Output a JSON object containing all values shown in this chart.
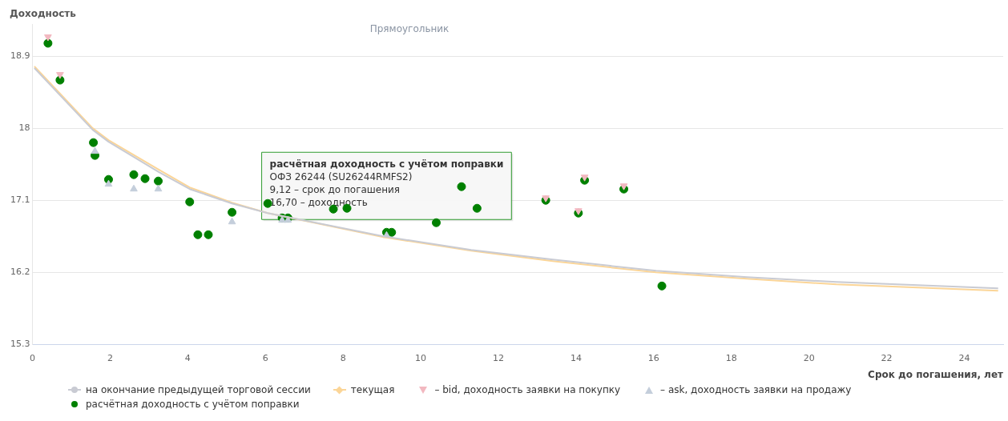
{
  "chart_data": {
    "type": "scatter",
    "xlabel": "Срок до погашения, лет",
    "ylabel": "Доходность",
    "xlim": [
      0,
      25
    ],
    "xticks": [
      0,
      2,
      4,
      6,
      8,
      10,
      12,
      14,
      16,
      18,
      20,
      22,
      24
    ],
    "ylim": [
      15.3,
      19.3
    ],
    "yticks": [
      15.3,
      16.2,
      17.1,
      18,
      18.9
    ],
    "grid": "y",
    "legend": "bottom",
    "series": [
      {
        "name": "на окончание предыдущей торговой сессии",
        "type": "line",
        "color": "#c9cbd3",
        "x": [
          0.05,
          1.55,
          1.96,
          3.26,
          4.05,
          5.14,
          6.06,
          9.04,
          11.3,
          13.4,
          16.06,
          18.4,
          20.7,
          22.8,
          24.87
        ],
        "values": [
          18.75,
          17.98,
          17.83,
          17.45,
          17.24,
          17.06,
          16.94,
          16.65,
          16.48,
          16.36,
          16.22,
          16.14,
          16.08,
          16.04,
          16.0
        ]
      },
      {
        "name": "текущая",
        "type": "line",
        "color": "#fbd597",
        "x": [
          0.05,
          1.55,
          1.96,
          3.26,
          4.05,
          5.14,
          6.06,
          9.04,
          11.3,
          13.4,
          16.06,
          18.4,
          20.7,
          22.8,
          24.87
        ],
        "values": [
          18.77,
          18.0,
          17.85,
          17.48,
          17.26,
          17.07,
          16.94,
          16.64,
          16.47,
          16.34,
          16.2,
          16.12,
          16.05,
          16.01,
          15.97
        ]
      },
      {
        "name": "– bid, доходность заявки на покупку",
        "marker": "triangle-down",
        "color": "#f2b8c0",
        "x": [
          0.4,
          0.71,
          13.22,
          14.06,
          14.22,
          15.23
        ],
        "values": [
          19.14,
          18.67,
          17.13,
          16.97,
          17.39,
          17.28
        ]
      },
      {
        "name": "– ask, доходность заявки на продажу",
        "marker": "triangle",
        "color": "#c4cedb",
        "x": [
          1.61,
          1.96,
          2.61,
          3.24,
          5.14,
          6.43,
          6.58,
          9.12
        ],
        "values": [
          17.71,
          17.3,
          17.24,
          17.24,
          16.83,
          16.85,
          16.85,
          16.66
        ]
      },
      {
        "name": "расчётная доходность с учётом поправки",
        "marker": "circle",
        "color": "#008000",
        "x": [
          0.4,
          0.71,
          1.57,
          1.61,
          1.96,
          2.61,
          2.9,
          3.24,
          4.05,
          4.26,
          4.53,
          5.14,
          6.06,
          6.43,
          6.58,
          7.75,
          8.1,
          9.12,
          9.25,
          10.4,
          11.05,
          11.45,
          13.22,
          14.06,
          14.22,
          15.23,
          16.21
        ],
        "values": [
          19.06,
          18.6,
          17.82,
          17.66,
          17.36,
          17.42,
          17.37,
          17.34,
          17.08,
          16.67,
          16.67,
          16.95,
          17.06,
          16.88,
          16.88,
          16.99,
          17.0,
          16.7,
          16.7,
          16.82,
          17.27,
          17.0,
          17.1,
          16.94,
          17.35,
          17.24,
          16.03
        ]
      }
    ],
    "annotations": [
      {
        "text": "расчётная доходность с учётом поправки\nОФЗ 26244 (SU26244RMFS2)\n9,12 – срок до погашения\n16,70 – доходность",
        "x": 9.12,
        "y": 16.7
      },
      "Прямоугольник"
    ]
  }
}
